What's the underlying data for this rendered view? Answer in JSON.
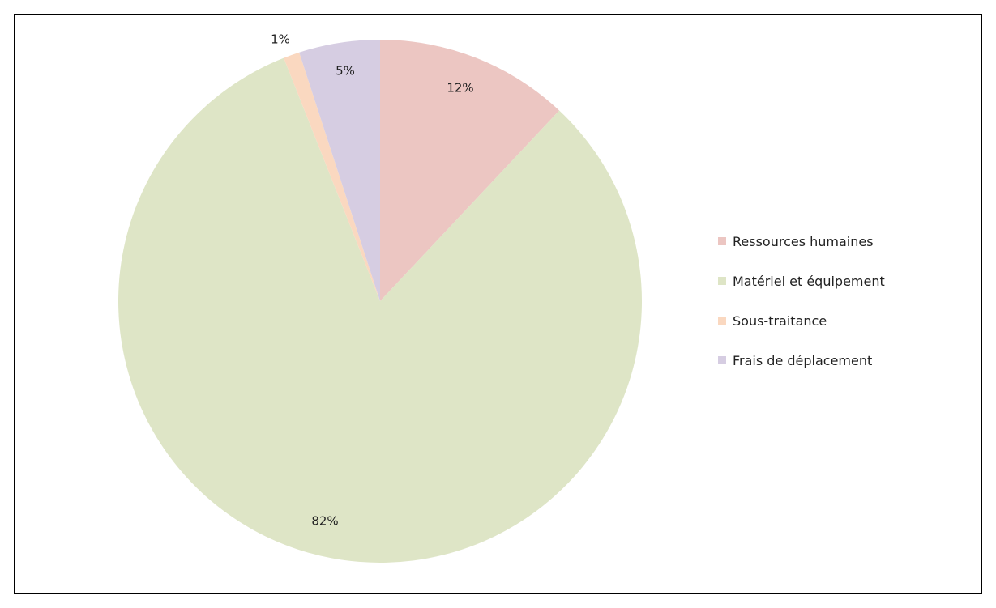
{
  "chart_data": {
    "type": "pie",
    "title": "",
    "categories": [
      "Ressources humaines",
      "Matériel et équipement",
      "Sous-traitance",
      "Frais de déplacement"
    ],
    "values": [
      12,
      82,
      1,
      5
    ],
    "data_labels": [
      "12%",
      "82%",
      "1%",
      "5%"
    ],
    "colors": [
      "#ecc6c2",
      "#dee5c6",
      "#fad8c0",
      "#d6cde2"
    ],
    "legend_position": "right",
    "start_angle": "12 o'clock",
    "direction": "clockwise"
  }
}
